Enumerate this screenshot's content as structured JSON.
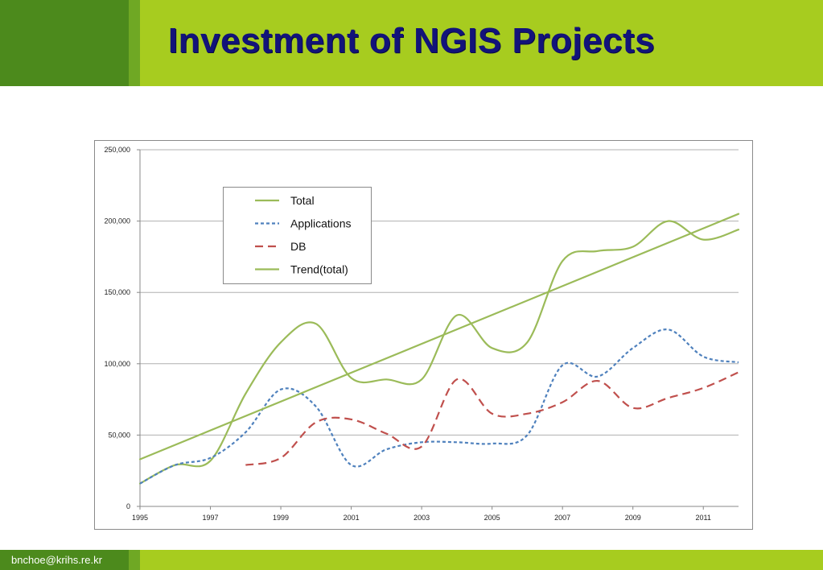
{
  "slide": {
    "title": "Investment of NGIS Projects",
    "footer": "bnchoe@krihs.re.kr",
    "colors": {
      "header_green": "#a7cc1f",
      "dark_green": "#4c8a1c",
      "title_navy": "#12137a"
    }
  },
  "chart_data": {
    "type": "line",
    "title": "",
    "xlabel": "",
    "ylabel": "",
    "xlim": [
      1995,
      2012
    ],
    "ylim": [
      0,
      250000
    ],
    "x_ticks": [
      1995,
      1997,
      1999,
      2001,
      2003,
      2005,
      2007,
      2009,
      2011
    ],
    "y_ticks": [
      0,
      50000,
      100000,
      150000,
      200000,
      250000
    ],
    "x_tick_labels": [
      "1995",
      "1997",
      "1999",
      "2001",
      "2003",
      "2005",
      "2007",
      "2009",
      "2011"
    ],
    "y_tick_labels": [
      "0",
      "50,000",
      "100,000",
      "150,000",
      "200,000",
      "250,000"
    ],
    "grid": "horizontal",
    "legend_position": "top-left inside",
    "series": [
      {
        "name": "Total",
        "color": "#9bbb59",
        "dash": "solid",
        "smooth": true,
        "x": [
          1995,
          1996,
          1997,
          1998,
          1999,
          2000,
          2001,
          2002,
          2003,
          2004,
          2005,
          2006,
          2007,
          2008,
          2009,
          2010,
          2011,
          2012
        ],
        "y": [
          16000,
          29000,
          32000,
          79000,
          115000,
          128000,
          90000,
          89000,
          89000,
          134000,
          111000,
          115000,
          172000,
          179000,
          182000,
          200000,
          187000,
          194000
        ]
      },
      {
        "name": "Applications",
        "color": "#4f81bd",
        "dash": "4,3",
        "smooth": true,
        "x": [
          1995,
          1996,
          1997,
          1998,
          1999,
          2000,
          2001,
          2002,
          2003,
          2004,
          2005,
          2006,
          2007,
          2008,
          2009,
          2010,
          2011,
          2012
        ],
        "y": [
          16000,
          29000,
          34000,
          52000,
          82000,
          70000,
          29000,
          40000,
          45000,
          45000,
          44000,
          50000,
          99000,
          91000,
          111000,
          124000,
          105000,
          101000
        ]
      },
      {
        "name": "DB",
        "color": "#c0504d",
        "dash": "10,6",
        "smooth": true,
        "x": [
          1998,
          1999,
          2000,
          2001,
          2002,
          2003,
          2004,
          2005,
          2006,
          2007,
          2008,
          2009,
          2010,
          2011,
          2012
        ],
        "y": [
          29000,
          34000,
          59000,
          61000,
          51000,
          42000,
          89000,
          65000,
          65000,
          73000,
          88000,
          69000,
          76000,
          83000,
          94000
        ]
      },
      {
        "name": "Trend(total)",
        "color": "#9bbb59",
        "dash": "solid",
        "smooth": false,
        "x": [
          1995,
          2012
        ],
        "y": [
          33000,
          205000
        ]
      }
    ]
  }
}
